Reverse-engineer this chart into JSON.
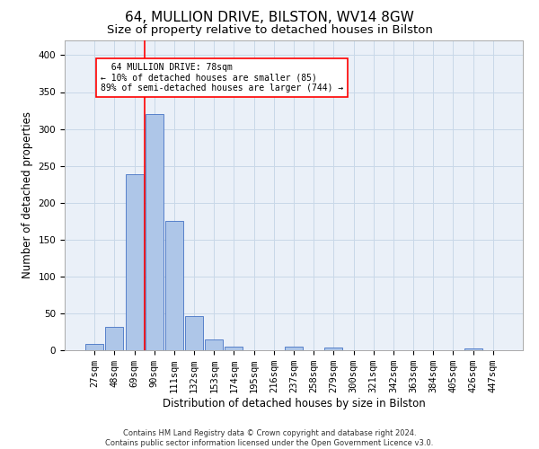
{
  "title": "64, MULLION DRIVE, BILSTON, WV14 8GW",
  "subtitle": "Size of property relative to detached houses in Bilston",
  "xlabel": "Distribution of detached houses by size in Bilston",
  "ylabel": "Number of detached properties",
  "footer_line1": "Contains HM Land Registry data © Crown copyright and database right 2024.",
  "footer_line2": "Contains public sector information licensed under the Open Government Licence v3.0.",
  "bin_labels": [
    "27sqm",
    "48sqm",
    "69sqm",
    "90sqm",
    "111sqm",
    "132sqm",
    "153sqm",
    "174sqm",
    "195sqm",
    "216sqm",
    "237sqm",
    "258sqm",
    "279sqm",
    "300sqm",
    "321sqm",
    "342sqm",
    "363sqm",
    "384sqm",
    "405sqm",
    "426sqm",
    "447sqm"
  ],
  "bar_values": [
    8,
    32,
    238,
    320,
    175,
    46,
    15,
    5,
    0,
    0,
    5,
    0,
    4,
    0,
    0,
    0,
    0,
    0,
    0,
    3,
    0
  ],
  "bar_color": "#aec6e8",
  "bar_edge_color": "#4472c4",
  "red_line_x": 2.5,
  "annotation_text": "  64 MULLION DRIVE: 78sqm\n← 10% of detached houses are smaller (85)\n89% of semi-detached houses are larger (744) →",
  "annotation_box_color": "white",
  "annotation_box_edge_color": "red",
  "red_line_color": "red",
  "ylim": [
    0,
    420
  ],
  "yticks": [
    0,
    50,
    100,
    150,
    200,
    250,
    300,
    350,
    400
  ],
  "grid_color": "#c8d8e8",
  "bg_color": "#eaf0f8",
  "title_fontsize": 11,
  "subtitle_fontsize": 9.5,
  "ylabel_fontsize": 8.5,
  "xlabel_fontsize": 8.5,
  "tick_fontsize": 7.5,
  "annotation_fontsize": 7,
  "footer_fontsize": 6
}
